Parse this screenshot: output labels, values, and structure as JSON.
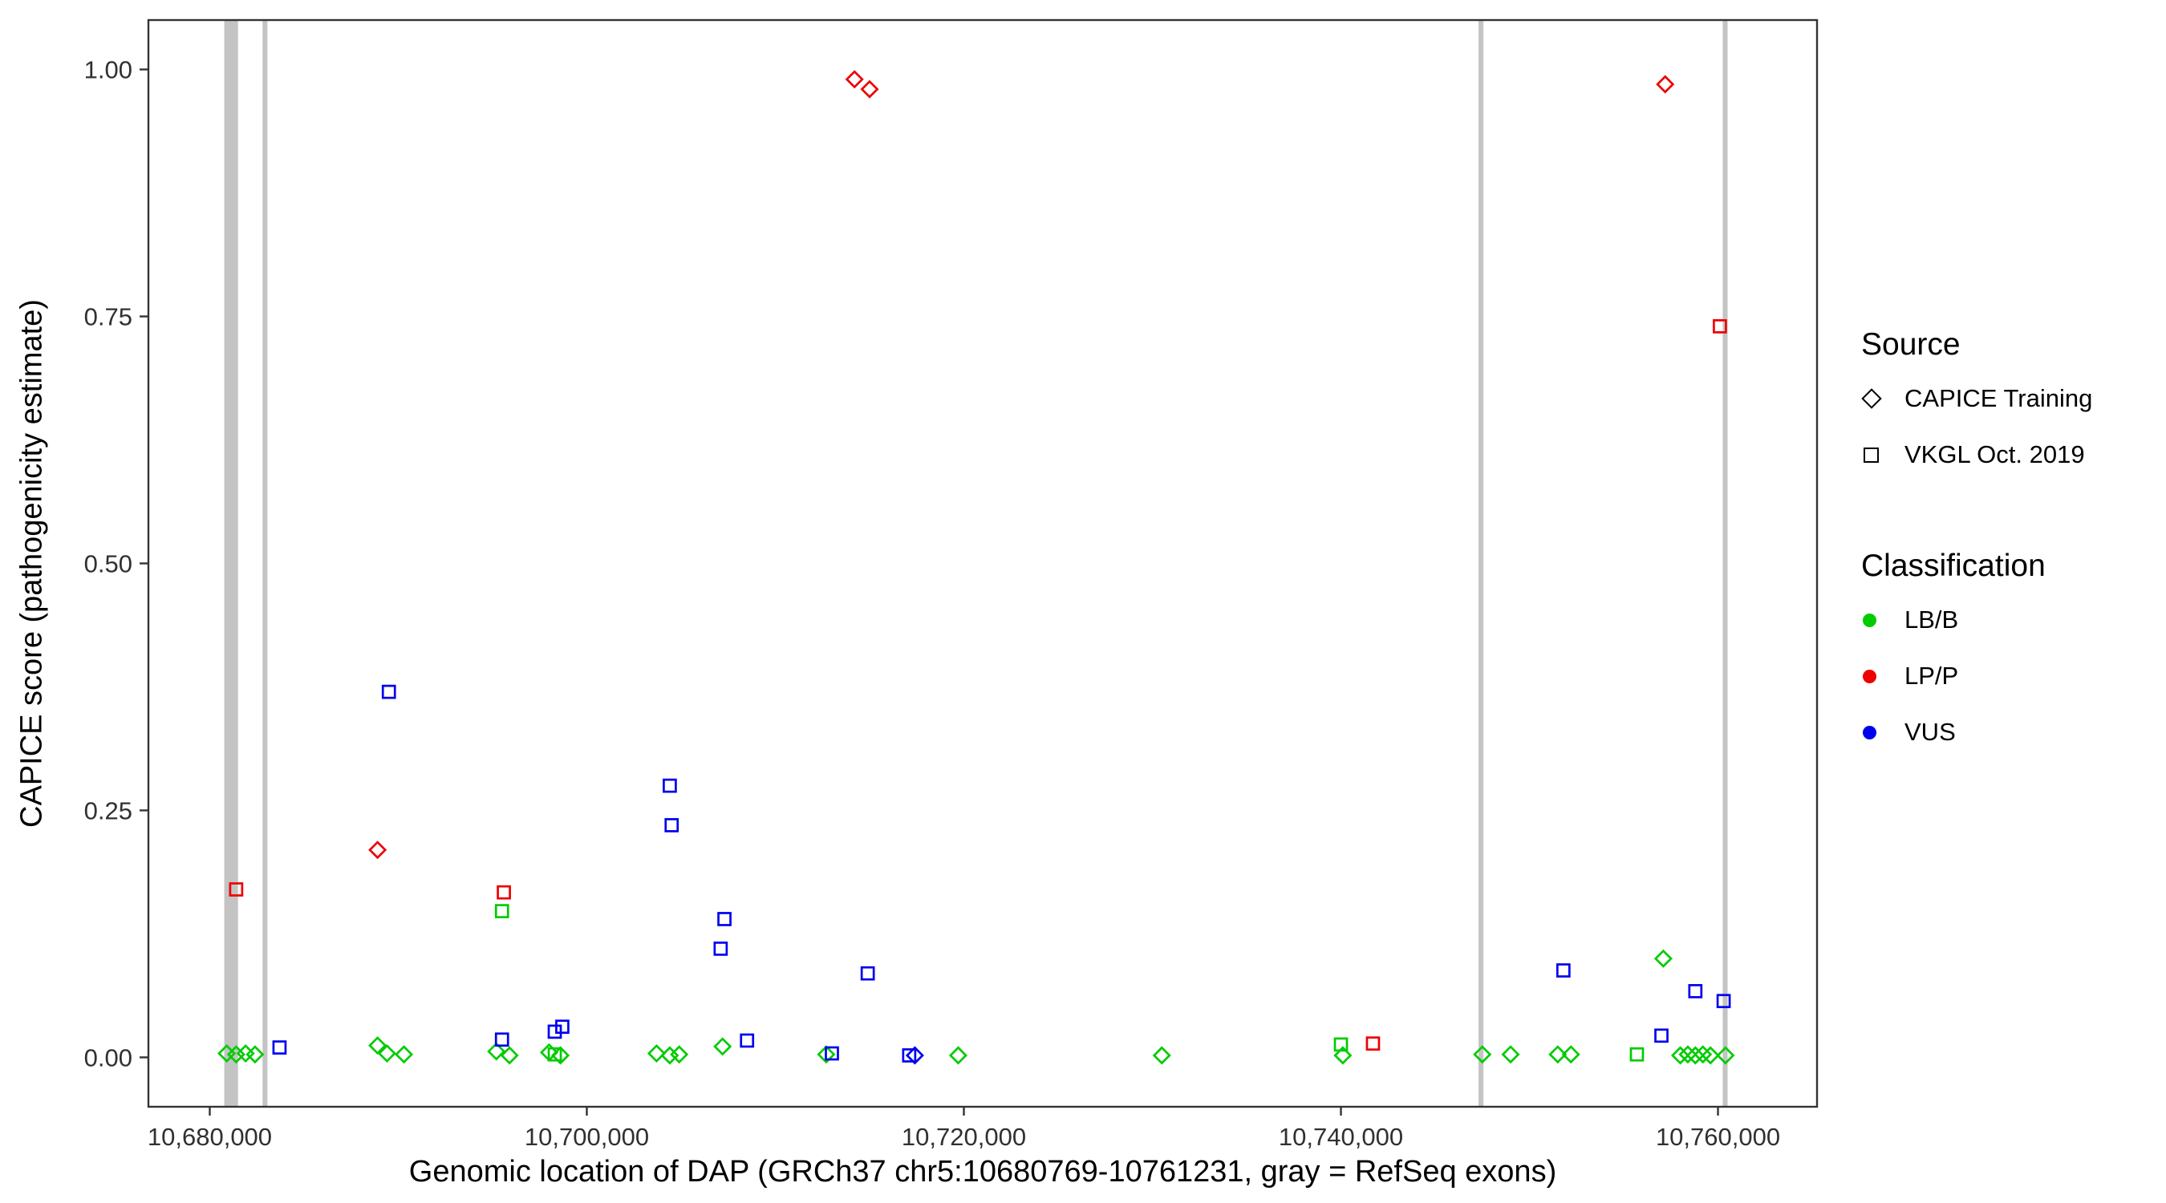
{
  "figure": {
    "background_color": "#FFFFFF",
    "panel_border_color": "#333333",
    "tick_color": "#333333",
    "tick_label_color": "#303030"
  },
  "axes": {
    "x_title": "Genomic location of DAP (GRCh37 chr5:10680769-10761231, gray = RefSeq exons)",
    "y_title": "CAPICE score (pathogenicity estimate)"
  },
  "legend": {
    "source": {
      "title": "Source",
      "items": [
        {
          "label": "CAPICE Training",
          "shape": "diamond"
        },
        {
          "label": "VKGL Oct. 2019",
          "shape": "square"
        }
      ]
    },
    "classification": {
      "title": "Classification",
      "items": [
        {
          "label": "LB/B",
          "color": "#00CC00"
        },
        {
          "label": "LP/P",
          "color": "#EE0000"
        },
        {
          "label": "VUS",
          "color": "#0000EE"
        }
      ]
    }
  },
  "chart_data": {
    "type": "scatter",
    "title": "",
    "xlabel": "Genomic location of DAP (GRCh37 chr5:10680769-10761231, gray = RefSeq exons)",
    "ylabel": "CAPICE score (pathogenicity estimate)",
    "xlim": [
      10676746,
      10765254
    ],
    "ylim": [
      -0.05,
      1.05
    ],
    "grid": false,
    "legend_position": "right",
    "x_ticks": [
      {
        "value": 10680000,
        "label": "10,680,000"
      },
      {
        "value": 10700000,
        "label": "10,700,000"
      },
      {
        "value": 10720000,
        "label": "10,720,000"
      },
      {
        "value": 10740000,
        "label": "10,740,000"
      },
      {
        "value": 10760000,
        "label": "10,760,000"
      }
    ],
    "y_ticks": [
      {
        "value": 0.0,
        "label": "0.00"
      },
      {
        "value": 0.25,
        "label": "0.25"
      },
      {
        "value": 0.5,
        "label": "0.50"
      },
      {
        "value": 0.75,
        "label": "0.75"
      },
      {
        "value": 1.0,
        "label": "1.00"
      }
    ],
    "exon_color": "#C4C4C4",
    "exons": [
      {
        "start": 10680769,
        "end": 10681500
      },
      {
        "start": 10682800,
        "end": 10683060
      },
      {
        "start": 10747300,
        "end": 10747560
      },
      {
        "start": 10760250,
        "end": 10760510
      }
    ],
    "class_colors": {
      "LB/B": "#00CC00",
      "LP/P": "#EE0000",
      "VUS": "#0000EE"
    },
    "series": [
      {
        "name": "CAPICE Training",
        "shape": "diamond",
        "points": [
          {
            "x": 10714200,
            "y": 0.99,
            "classification": "LP/P"
          },
          {
            "x": 10715000,
            "y": 0.98,
            "classification": "LP/P"
          },
          {
            "x": 10757200,
            "y": 0.985,
            "classification": "LP/P"
          },
          {
            "x": 10688900,
            "y": 0.21,
            "classification": "LP/P"
          },
          {
            "x": 10757100,
            "y": 0.1,
            "classification": "LB/B"
          },
          {
            "x": 10680900,
            "y": 0.004,
            "classification": "LB/B"
          },
          {
            "x": 10681400,
            "y": 0.003,
            "classification": "LB/B"
          },
          {
            "x": 10681900,
            "y": 0.004,
            "classification": "LB/B"
          },
          {
            "x": 10682400,
            "y": 0.003,
            "classification": "LB/B"
          },
          {
            "x": 10688900,
            "y": 0.012,
            "classification": "LB/B"
          },
          {
            "x": 10689400,
            "y": 0.004,
            "classification": "LB/B"
          },
          {
            "x": 10690300,
            "y": 0.003,
            "classification": "LB/B"
          },
          {
            "x": 10695200,
            "y": 0.006,
            "classification": "LB/B"
          },
          {
            "x": 10695900,
            "y": 0.002,
            "classification": "LB/B"
          },
          {
            "x": 10698000,
            "y": 0.005,
            "classification": "LB/B"
          },
          {
            "x": 10698600,
            "y": 0.002,
            "classification": "LB/B"
          },
          {
            "x": 10703700,
            "y": 0.004,
            "classification": "LB/B"
          },
          {
            "x": 10704400,
            "y": 0.002,
            "classification": "LB/B"
          },
          {
            "x": 10704900,
            "y": 0.003,
            "classification": "LB/B"
          },
          {
            "x": 10707200,
            "y": 0.011,
            "classification": "LB/B"
          },
          {
            "x": 10712700,
            "y": 0.003,
            "classification": "LB/B"
          },
          {
            "x": 10719700,
            "y": 0.002,
            "classification": "LB/B"
          },
          {
            "x": 10730500,
            "y": 0.002,
            "classification": "LB/B"
          },
          {
            "x": 10740100,
            "y": 0.002,
            "classification": "LB/B"
          },
          {
            "x": 10747500,
            "y": 0.003,
            "classification": "LB/B"
          },
          {
            "x": 10749000,
            "y": 0.003,
            "classification": "LB/B"
          },
          {
            "x": 10751500,
            "y": 0.003,
            "classification": "LB/B"
          },
          {
            "x": 10752200,
            "y": 0.003,
            "classification": "LB/B"
          },
          {
            "x": 10758000,
            "y": 0.002,
            "classification": "LB/B"
          },
          {
            "x": 10758400,
            "y": 0.003,
            "classification": "LB/B"
          },
          {
            "x": 10758800,
            "y": 0.002,
            "classification": "LB/B"
          },
          {
            "x": 10759200,
            "y": 0.003,
            "classification": "LB/B"
          },
          {
            "x": 10759600,
            "y": 0.002,
            "classification": "LB/B"
          },
          {
            "x": 10760400,
            "y": 0.002,
            "classification": "LB/B"
          },
          {
            "x": 10717400,
            "y": 0.002,
            "classification": "VUS"
          }
        ]
      },
      {
        "name": "VKGL Oct. 2019",
        "shape": "square",
        "points": [
          {
            "x": 10760100,
            "y": 0.74,
            "classification": "LP/P"
          },
          {
            "x": 10681400,
            "y": 0.17,
            "classification": "LP/P"
          },
          {
            "x": 10695600,
            "y": 0.167,
            "classification": "LP/P"
          },
          {
            "x": 10741700,
            "y": 0.014,
            "classification": "LP/P"
          },
          {
            "x": 10689500,
            "y": 0.37,
            "classification": "VUS"
          },
          {
            "x": 10704400,
            "y": 0.275,
            "classification": "VUS"
          },
          {
            "x": 10704500,
            "y": 0.235,
            "classification": "VUS"
          },
          {
            "x": 10707300,
            "y": 0.14,
            "classification": "VUS"
          },
          {
            "x": 10707100,
            "y": 0.11,
            "classification": "VUS"
          },
          {
            "x": 10714900,
            "y": 0.085,
            "classification": "VUS"
          },
          {
            "x": 10751800,
            "y": 0.088,
            "classification": "VUS"
          },
          {
            "x": 10758800,
            "y": 0.067,
            "classification": "VUS"
          },
          {
            "x": 10760300,
            "y": 0.057,
            "classification": "VUS"
          },
          {
            "x": 10757000,
            "y": 0.022,
            "classification": "VUS"
          },
          {
            "x": 10683700,
            "y": 0.01,
            "classification": "VUS"
          },
          {
            "x": 10695500,
            "y": 0.018,
            "classification": "VUS"
          },
          {
            "x": 10698300,
            "y": 0.026,
            "classification": "VUS"
          },
          {
            "x": 10698700,
            "y": 0.031,
            "classification": "VUS"
          },
          {
            "x": 10708500,
            "y": 0.017,
            "classification": "VUS"
          },
          {
            "x": 10713000,
            "y": 0.004,
            "classification": "VUS"
          },
          {
            "x": 10717100,
            "y": 0.002,
            "classification": "VUS"
          },
          {
            "x": 10695500,
            "y": 0.148,
            "classification": "LB/B"
          },
          {
            "x": 10740000,
            "y": 0.013,
            "classification": "LB/B"
          },
          {
            "x": 10755700,
            "y": 0.003,
            "classification": "LB/B"
          },
          {
            "x": 10698300,
            "y": 0.003,
            "classification": "LB/B"
          }
        ]
      }
    ]
  }
}
